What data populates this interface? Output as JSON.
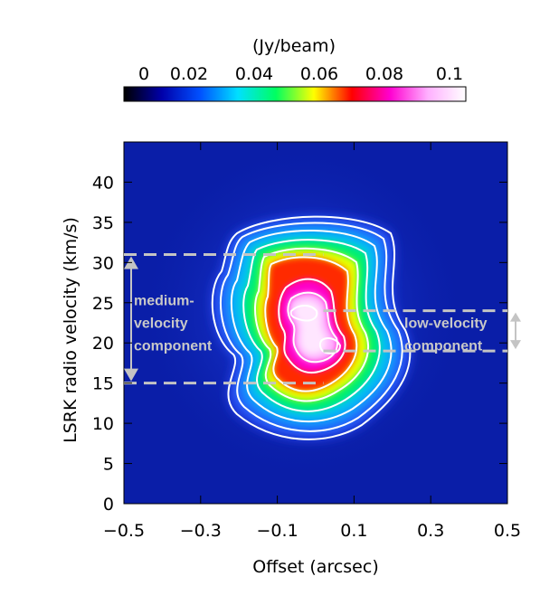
{
  "chart_data": {
    "type": "heatmap",
    "title": "",
    "xlabel": "Offset (arcsec)",
    "ylabel": "LSRK radio velocity  (km/s)",
    "xlim": [
      -0.5,
      0.5
    ],
    "ylim": [
      0,
      45
    ],
    "x_ticks": [
      {
        "value": -0.5,
        "label": "−0.5"
      },
      {
        "value": -0.3,
        "label": "−0.3"
      },
      {
        "value": -0.1,
        "label": "−0.1"
      },
      {
        "value": 0.1,
        "label": "0.1"
      },
      {
        "value": 0.3,
        "label": "0.3"
      },
      {
        "value": 0.5,
        "label": "0.5"
      }
    ],
    "y_ticks": [
      {
        "value": 0,
        "label": "0"
      },
      {
        "value": 5,
        "label": "5"
      },
      {
        "value": 10,
        "label": "10"
      },
      {
        "value": 15,
        "label": "15"
      },
      {
        "value": 20,
        "label": "20"
      },
      {
        "value": 25,
        "label": "25"
      },
      {
        "value": 30,
        "label": "30"
      },
      {
        "value": 35,
        "label": "35"
      },
      {
        "value": 40,
        "label": "40"
      }
    ],
    "colorbar": {
      "label": "(Jy/beam)",
      "range": [
        0,
        0.105
      ],
      "ticks": [
        {
          "value": 0,
          "label": "0"
        },
        {
          "value": 0.02,
          "label": "0.02"
        },
        {
          "value": 0.04,
          "label": "0.04"
        },
        {
          "value": 0.06,
          "label": "0.06"
        },
        {
          "value": 0.08,
          "label": "0.08"
        },
        {
          "value": 0.1,
          "label": "0.1"
        }
      ],
      "colors": [
        "#000000",
        "#0000aa",
        "#0050ff",
        "#00e0ff",
        "#00ff60",
        "#ffff00",
        "#ff0000",
        "#ff00d0",
        "#ffb0ff",
        "#ffffff"
      ],
      "placement": "top"
    },
    "background_color": "#0a1ea8",
    "components": [
      {
        "label_lines": [
          "medium-",
          "velocity",
          "component"
        ],
        "v_low": 15,
        "v_high": 31,
        "side": "left"
      },
      {
        "label_lines": [
          "low-velocity",
          "component"
        ],
        "v_low": 19,
        "v_high": 24,
        "side": "right"
      }
    ],
    "emission_peaks": [
      {
        "x": -0.03,
        "y": 23.5,
        "peak": 0.1
      },
      {
        "x": 0.03,
        "y": 19.5,
        "peak": 0.098
      }
    ],
    "contour_levels": [
      "white",
      "white",
      "white",
      "white",
      "white",
      "white",
      "white",
      "white"
    ]
  }
}
